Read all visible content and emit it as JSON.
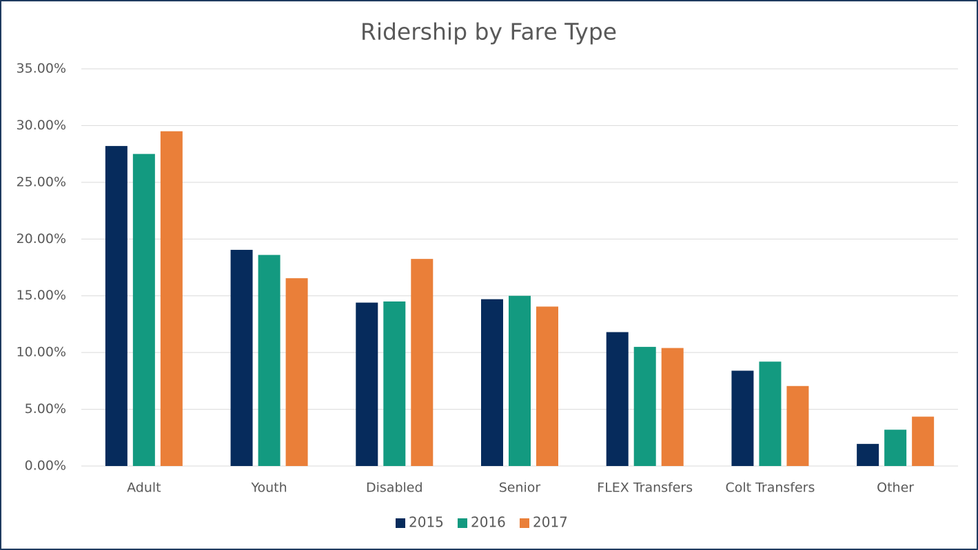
{
  "chart_data": {
    "type": "bar",
    "title": "Ridership by Fare Type",
    "categories": [
      "Adult",
      "Youth",
      "Disabled",
      "Senior",
      "FLEX Transfers",
      "Colt Transfers",
      "Other"
    ],
    "series": [
      {
        "name": "2015",
        "color": "#062b5c",
        "values": [
          28.2,
          19.05,
          14.4,
          14.7,
          11.8,
          8.4,
          1.95
        ]
      },
      {
        "name": "2016",
        "color": "#139a80",
        "values": [
          27.5,
          18.6,
          14.5,
          15.0,
          10.5,
          9.2,
          3.2
        ]
      },
      {
        "name": "2017",
        "color": "#ea7f39",
        "values": [
          29.5,
          16.55,
          18.25,
          14.05,
          10.4,
          7.05,
          4.35
        ]
      }
    ],
    "ylim": [
      0,
      35
    ],
    "yticks": [
      {
        "value": 0,
        "label": "0.00%"
      },
      {
        "value": 5,
        "label": "5.00%"
      },
      {
        "value": 10,
        "label": "10.00%"
      },
      {
        "value": 15,
        "label": "15.00%"
      },
      {
        "value": 20,
        "label": "20.00%"
      },
      {
        "value": 25,
        "label": "25.00%"
      },
      {
        "value": 30,
        "label": "30.00%"
      },
      {
        "value": 35,
        "label": "35.00%"
      }
    ],
    "grid": true,
    "legend": "bottom"
  }
}
